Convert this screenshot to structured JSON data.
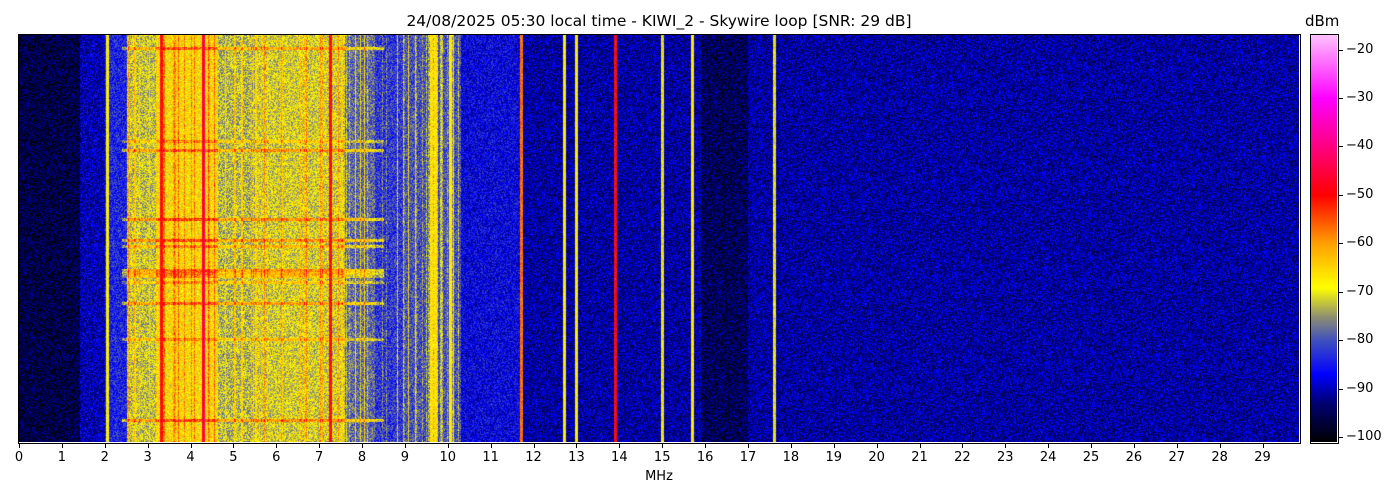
{
  "chart_data": {
    "type": "heatmap",
    "title": "24/08/2025 05:30 local time - KIWI_2 - Skywire loop [SNR: 29 dB]",
    "xlabel": "MHz",
    "ylabel": "",
    "xlim": [
      0,
      29.85
    ],
    "x_ticks": [
      "0",
      "1",
      "2",
      "3",
      "4",
      "5",
      "6",
      "7",
      "8",
      "9",
      "10",
      "11",
      "12",
      "13",
      "14",
      "15",
      "16",
      "17",
      "18",
      "19",
      "20",
      "21",
      "22",
      "23",
      "24",
      "25",
      "26",
      "27",
      "28",
      "29"
    ],
    "colorbar": {
      "label": "dBm",
      "range": [
        -101,
        -17
      ],
      "ticks": [
        "-20",
        "-30",
        "-40",
        "-50",
        "-60",
        "-70",
        "-80",
        "-90",
        "-100"
      ],
      "colormap": [
        {
          "dbm": -101,
          "color": "#000000"
        },
        {
          "dbm": -93,
          "color": "#000070"
        },
        {
          "dbm": -87,
          "color": "#0000ff"
        },
        {
          "dbm": -80,
          "color": "#4050c0"
        },
        {
          "dbm": -75,
          "color": "#909070"
        },
        {
          "dbm": -69,
          "color": "#ffff00"
        },
        {
          "dbm": -60,
          "color": "#ffa000"
        },
        {
          "dbm": -50,
          "color": "#ff0000"
        },
        {
          "dbm": -40,
          "color": "#ff0080"
        },
        {
          "dbm": -30,
          "color": "#ff00ff"
        },
        {
          "dbm": -17,
          "color": "#ffc0ff"
        }
      ]
    },
    "band_levels_dbm": [
      {
        "from_mhz": 0,
        "to_mhz": 1.4,
        "level": -96
      },
      {
        "from_mhz": 1.4,
        "to_mhz": 2.0,
        "level": -90
      },
      {
        "from_mhz": 2.0,
        "to_mhz": 2.5,
        "level": -84
      },
      {
        "from_mhz": 2.5,
        "to_mhz": 3.2,
        "level": -72
      },
      {
        "from_mhz": 3.2,
        "to_mhz": 4.6,
        "level": -67
      },
      {
        "from_mhz": 4.6,
        "to_mhz": 5.5,
        "level": -73
      },
      {
        "from_mhz": 5.5,
        "to_mhz": 7.6,
        "level": -71
      },
      {
        "from_mhz": 7.6,
        "to_mhz": 8.3,
        "level": -78
      },
      {
        "from_mhz": 8.3,
        "to_mhz": 9.0,
        "level": -82
      },
      {
        "from_mhz": 9.0,
        "to_mhz": 10.3,
        "level": -80
      },
      {
        "from_mhz": 10.3,
        "to_mhz": 11.7,
        "level": -87
      },
      {
        "from_mhz": 11.7,
        "to_mhz": 15.9,
        "level": -91
      },
      {
        "from_mhz": 15.9,
        "to_mhz": 17.0,
        "level": -95
      },
      {
        "from_mhz": 17.0,
        "to_mhz": 29.85,
        "level": -91
      }
    ],
    "carriers": [
      {
        "mhz": 2.05,
        "level": -68
      },
      {
        "mhz": 3.3,
        "level": -50
      },
      {
        "mhz": 4.3,
        "level": -45
      },
      {
        "mhz": 7.25,
        "level": -50
      },
      {
        "mhz": 9.6,
        "level": -66
      },
      {
        "mhz": 9.7,
        "level": -66
      },
      {
        "mhz": 10.05,
        "level": -68
      },
      {
        "mhz": 11.7,
        "level": -57
      },
      {
        "mhz": 12.7,
        "level": -68
      },
      {
        "mhz": 13.0,
        "level": -68
      },
      {
        "mhz": 13.9,
        "level": -50
      },
      {
        "mhz": 15.0,
        "level": -70
      },
      {
        "mhz": 15.7,
        "level": -67
      },
      {
        "mhz": 17.6,
        "level": -70
      }
    ]
  }
}
